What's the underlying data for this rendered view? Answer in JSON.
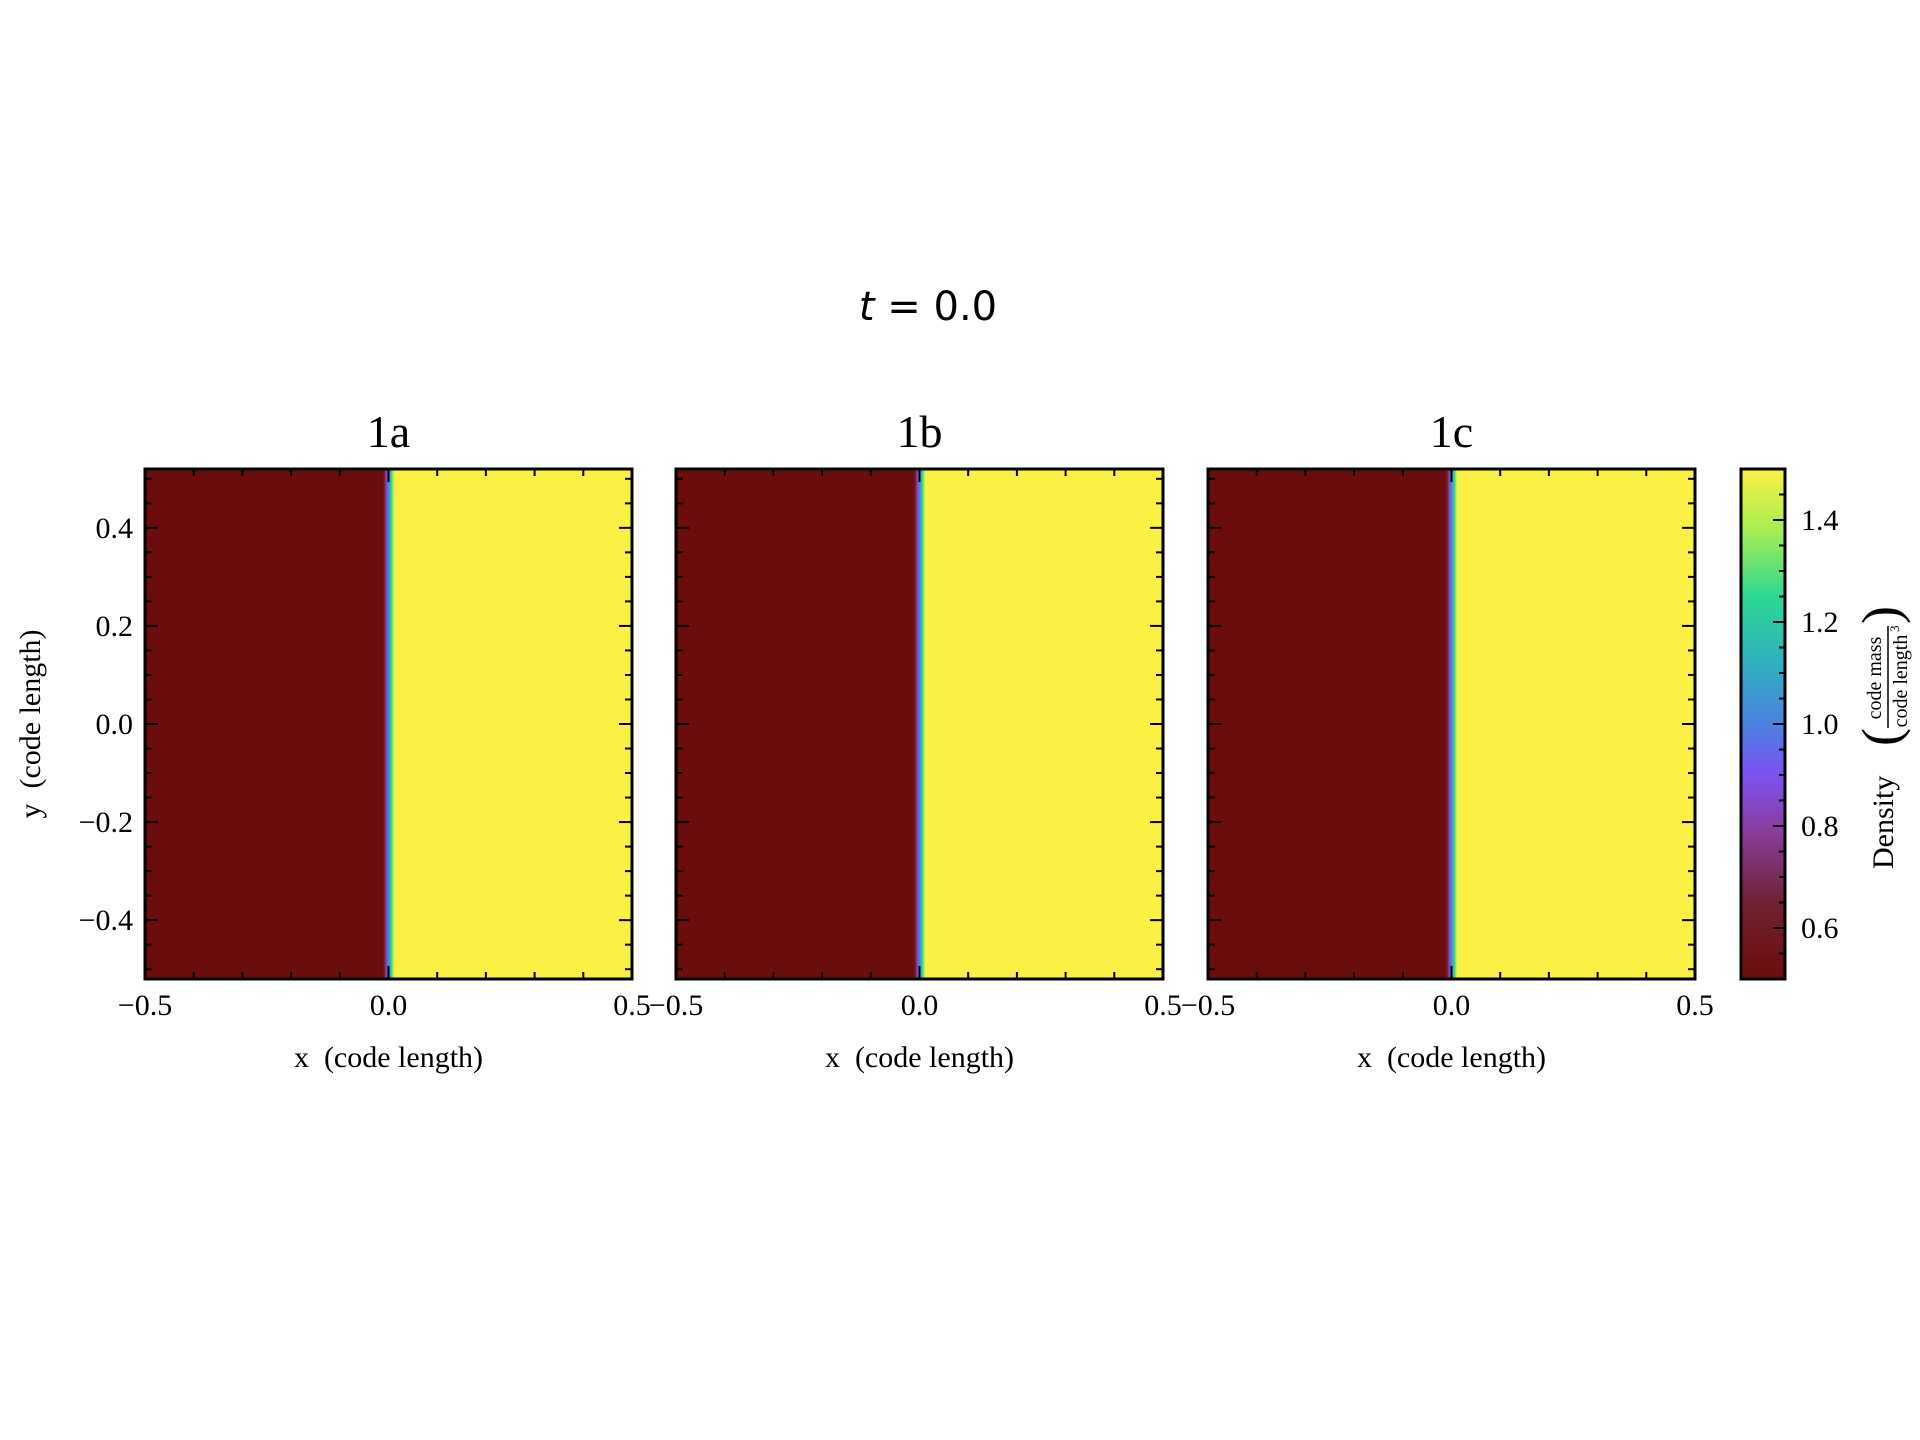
{
  "figure": {
    "suptitle_var": "t",
    "suptitle_rest": " = 0.0"
  },
  "chart_data": [
    {
      "type": "heatmap",
      "title": "1a",
      "xlabel": "x  (code length)",
      "ylabel": "y  (code length)",
      "xlim": [
        -0.5,
        0.5
      ],
      "ylim": [
        -0.52,
        0.52
      ],
      "xticks": [
        -0.5,
        0.0,
        0.5
      ],
      "xtick_labels": [
        "−0.5",
        "0.0",
        "0.5"
      ],
      "yticks": [
        -0.4,
        -0.2,
        0.0,
        0.2,
        0.4
      ],
      "ytick_labels": [
        "−0.4",
        "−0.2",
        "0.0",
        "0.2",
        "0.4"
      ],
      "field": {
        "left_value": 0.5,
        "right_value": 1.5,
        "interface_x": 0.0
      },
      "show_ylabel": true
    },
    {
      "type": "heatmap",
      "title": "1b",
      "xlabel": "x  (code length)",
      "ylabel": "",
      "xlim": [
        -0.5,
        0.5
      ],
      "ylim": [
        -0.52,
        0.52
      ],
      "xticks": [
        -0.5,
        0.0,
        0.5
      ],
      "xtick_labels": [
        "−0.5",
        "0.0",
        "0.5"
      ],
      "yticks": [
        -0.4,
        -0.2,
        0.0,
        0.2,
        0.4
      ],
      "ytick_labels": [],
      "field": {
        "left_value": 0.5,
        "right_value": 1.5,
        "interface_x": 0.0
      },
      "show_ylabel": false
    },
    {
      "type": "heatmap",
      "title": "1c",
      "xlabel": "x  (code length)",
      "ylabel": "",
      "xlim": [
        -0.5,
        0.5
      ],
      "ylim": [
        -0.52,
        0.52
      ],
      "xticks": [
        -0.5,
        0.0,
        0.5
      ],
      "xtick_labels": [
        "−0.5",
        "0.0",
        "0.5"
      ],
      "yticks": [
        -0.4,
        -0.2,
        0.0,
        0.2,
        0.4
      ],
      "ytick_labels": [],
      "field": {
        "left_value": 0.5,
        "right_value": 1.5,
        "interface_x": 0.0
      },
      "show_ylabel": false
    }
  ],
  "colorbar": {
    "label": "Density",
    "unit_numerator": "code mass",
    "unit_denominator": "code length",
    "unit_exponent": "3",
    "range": [
      0.5,
      1.5
    ],
    "ticks": [
      0.6,
      0.8,
      1.0,
      1.2,
      1.4
    ],
    "tick_labels": [
      "0.6",
      "0.8",
      "1.0",
      "1.2",
      "1.4"
    ],
    "colormap_stops": [
      {
        "v": 0.0,
        "color": "#6b0d0d"
      },
      {
        "v": 0.15,
        "color": "#702232"
      },
      {
        "v": 0.3,
        "color": "#8a3fa5"
      },
      {
        "v": 0.4,
        "color": "#7b52f2"
      },
      {
        "v": 0.5,
        "color": "#4b82e0"
      },
      {
        "v": 0.62,
        "color": "#2fb0bf"
      },
      {
        "v": 0.75,
        "color": "#2ed891"
      },
      {
        "v": 0.88,
        "color": "#a6ee52"
      },
      {
        "v": 1.0,
        "color": "#fbf145"
      }
    ]
  }
}
